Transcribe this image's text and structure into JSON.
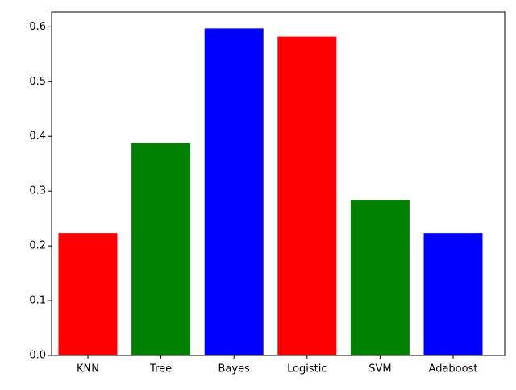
{
  "chart_data": {
    "type": "bar",
    "categories": [
      "KNN",
      "Tree",
      "Bayes",
      "Logistic",
      "SVM",
      "Adaboost"
    ],
    "values": [
      0.2235,
      0.388,
      0.597,
      0.582,
      0.284,
      0.2235
    ],
    "colors": [
      "#ff0000",
      "#008000",
      "#0000ff",
      "#ff0000",
      "#008000",
      "#0000ff"
    ],
    "ylim": [
      0,
      0.627
    ],
    "yticks": [
      {
        "value": 0,
        "label": "0.0"
      },
      0.1,
      0.2,
      0.3,
      0.4,
      0.5,
      0.6
    ],
    "grid": false
  }
}
